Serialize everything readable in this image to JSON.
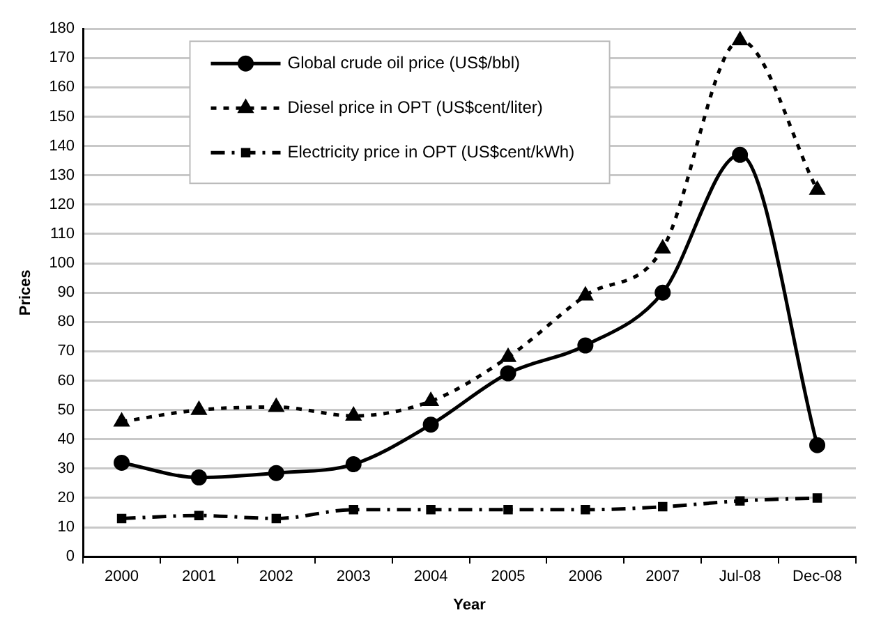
{
  "chart_data": {
    "type": "line",
    "xlabel": "Year",
    "ylabel": "Prices",
    "categories": [
      "2000",
      "2001",
      "2002",
      "2003",
      "2004",
      "2005",
      "2006",
      "2007",
      "Jul-08",
      "Dec-08"
    ],
    "series": [
      {
        "name": "Global crude oil price (US$/bbl)",
        "color": "#000000",
        "marker": "circle",
        "line_style": "solid",
        "values": [
          32,
          27,
          28.5,
          31.5,
          45,
          62.5,
          72,
          90,
          137,
          38
        ]
      },
      {
        "name": "Diesel price in OPT (US$cent/liter)",
        "color": "#000000",
        "marker": "triangle",
        "line_style": "dotted",
        "values": [
          46,
          50,
          51,
          48,
          53,
          68,
          89,
          105,
          176,
          125
        ]
      },
      {
        "name": "Electricity price in OPT (US$cent/kWh)",
        "color": "#000000",
        "marker": "square",
        "line_style": "dashed",
        "values": [
          13,
          14,
          13,
          16,
          16,
          16,
          16,
          17,
          19,
          20
        ]
      }
    ],
    "ylim": [
      0,
      180
    ],
    "yticks": [
      0,
      10,
      20,
      30,
      40,
      50,
      60,
      70,
      80,
      90,
      100,
      110,
      120,
      130,
      140,
      150,
      160,
      170,
      180
    ],
    "grid": "y",
    "legend": "top"
  }
}
